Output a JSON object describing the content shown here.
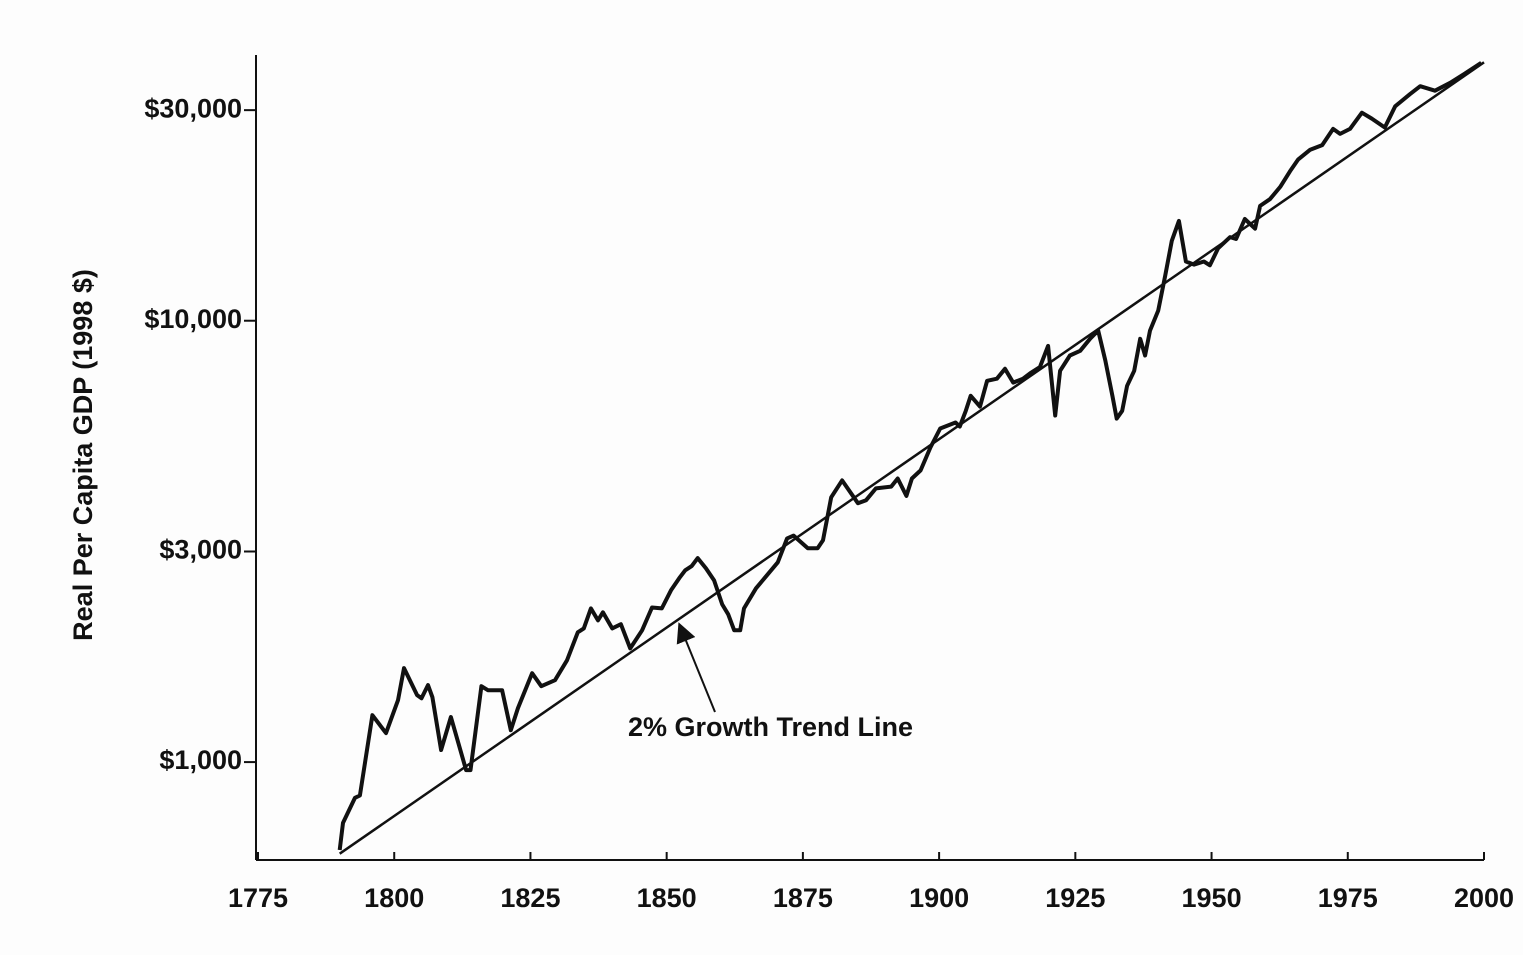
{
  "chart_data": {
    "type": "line",
    "ylabel": "Real Per Capita GDP (1998 $)",
    "log_y": true,
    "xlim": [
      1775,
      2000
    ],
    "xticks": [
      1775,
      1800,
      1825,
      1850,
      1875,
      1900,
      1925,
      1950,
      1975,
      2000
    ],
    "ylim": [
      600,
      40000
    ],
    "yticks": [
      {
        "value": 1000,
        "label": "$1,000"
      },
      {
        "value": 3000,
        "label": "$3,000"
      },
      {
        "value": 10000,
        "label": "$10,000"
      },
      {
        "value": 30000,
        "label": "$30,000"
      }
    ],
    "series": [
      {
        "color": "#111111",
        "x": [
          1790,
          1790.6,
          1792.8,
          1793.7,
          1796,
          1798.5,
          1800.7,
          1801.8,
          1804.2,
          1805,
          1806.2,
          1807,
          1808.6,
          1810.4,
          1813.2,
          1814,
          1816,
          1817.2,
          1819.8,
          1821.4,
          1822.7,
          1825.3,
          1827,
          1829.5,
          1831.7,
          1833.7,
          1834.8,
          1836.1,
          1837.4,
          1838.3,
          1840,
          1841.6,
          1843.3,
          1845.5,
          1847.3,
          1849.1,
          1850.8,
          1852.3,
          1853.4,
          1854.6,
          1855.7,
          1857.2,
          1858.7,
          1860.2,
          1861.3,
          1862.4,
          1863.5,
          1864.2,
          1866.4,
          1868.4,
          1870.4,
          1872.1,
          1873.3,
          1875.9,
          1877.7,
          1878.7,
          1880.2,
          1882.2,
          1885.1,
          1886.6,
          1888.4,
          1891.2,
          1892.4,
          1894,
          1895,
          1896.6,
          1898.4,
          1900.2,
          1903,
          1903.8,
          1904.9,
          1905.8,
          1907.5,
          1908.8,
          1910.6,
          1912.1,
          1913.6,
          1915.4,
          1916.7,
          1918.5,
          1920,
          1921.3,
          1922.2,
          1924,
          1925.9,
          1927.7,
          1929.2,
          1930.5,
          1931.8,
          1932.6,
          1933.6,
          1934.5,
          1935.8,
          1936.9,
          1937.8,
          1938.7,
          1940.2,
          1941.5,
          1942.7,
          1944,
          1945.3,
          1946.8,
          1948.6,
          1949.7,
          1951.2,
          1953.4,
          1954.5,
          1956.1,
          1958,
          1958.9,
          1960.7,
          1962.6,
          1964.4,
          1965.9,
          1968.1,
          1970.3,
          1972.3,
          1973.6,
          1975.4,
          1977.6,
          1979.4,
          1981.8,
          1983.7,
          1986.4,
          1988.3,
          1991,
          1993.8,
          1996.5,
          1999.5
        ],
        "values": [
          632,
          728,
          830,
          840,
          1277,
          1163,
          1381,
          1633,
          1418,
          1395,
          1494,
          1403,
          1065,
          1265,
          959,
          959,
          1486,
          1455,
          1455,
          1181,
          1324,
          1590,
          1486,
          1533,
          1701,
          1968,
          2009,
          2229,
          2094,
          2185,
          2009,
          2053,
          1810,
          1989,
          2240,
          2229,
          2450,
          2610,
          2720,
          2780,
          2898,
          2750,
          2580,
          2277,
          2162,
          1989,
          1989,
          2229,
          2476,
          2650,
          2835,
          3212,
          3260,
          3050,
          3050,
          3180,
          3980,
          4348,
          3860,
          3920,
          4170,
          4210,
          4390,
          4010,
          4390,
          4580,
          5160,
          5700,
          5880,
          5760,
          6250,
          6760,
          6390,
          7310,
          7390,
          7780,
          7240,
          7390,
          7600,
          7850,
          8770,
          6100,
          7700,
          8340,
          8550,
          9100,
          9500,
          8130,
          6760,
          6000,
          6250,
          7120,
          7700,
          9100,
          8340,
          9500,
          10540,
          12650,
          15170,
          16830,
          13620,
          13400,
          13620,
          13350,
          14590,
          15470,
          15320,
          17000,
          16170,
          18200,
          18850,
          20100,
          21800,
          23200,
          24400,
          25000,
          27200,
          26500,
          27200,
          29600,
          28700,
          27400,
          30600,
          32600,
          34000,
          33200,
          34600,
          36300,
          38400
        ]
      },
      {
        "name": "2% Growth Trend Line",
        "color": "#111111",
        "x": [
          1790,
          2000
        ],
        "values": [
          620,
          38500
        ]
      }
    ]
  }
}
